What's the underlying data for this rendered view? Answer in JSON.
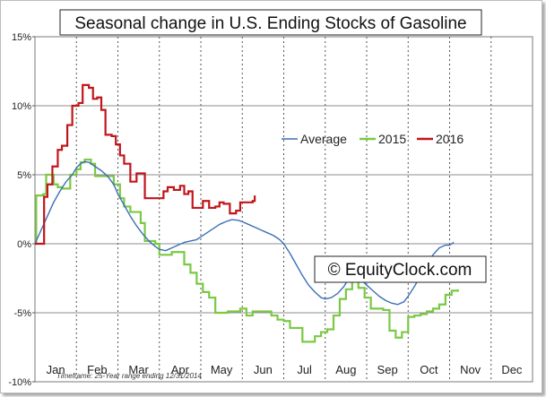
{
  "chart_data": {
    "type": "line",
    "title": "Seasonal change in U.S. Ending Stocks of Gasoline",
    "watermark": "© EquityClock.com",
    "footnote": "Timeframe: 25-Year range ending 12/31/2014",
    "x_categories": [
      "Jan",
      "Feb",
      "Mar",
      "Apr",
      "May",
      "Jun",
      "Jul",
      "Aug",
      "Sep",
      "Oct",
      "Nov",
      "Dec"
    ],
    "x_range": [
      0,
      12
    ],
    "y_ticks": [
      "15%",
      "10%",
      "5%",
      "0%",
      "-5%",
      "-10%"
    ],
    "y_tick_values": [
      15,
      10,
      5,
      0,
      -5,
      -10
    ],
    "ylim": [
      -10,
      15
    ],
    "grid": "dashed vertical lines between months, solid horizontal lines at 5% steps",
    "legend_position": "center-right",
    "series": [
      {
        "name": "Average",
        "color": "#3d6fb6",
        "style": "smooth",
        "points": [
          [
            0.0,
            0.0
          ],
          [
            0.15,
            1.0
          ],
          [
            0.3,
            2.0
          ],
          [
            0.45,
            3.0
          ],
          [
            0.6,
            3.8
          ],
          [
            0.75,
            4.5
          ],
          [
            0.9,
            5.0
          ],
          [
            1.0,
            5.5
          ],
          [
            1.1,
            5.8
          ],
          [
            1.2,
            5.95
          ],
          [
            1.3,
            5.9
          ],
          [
            1.45,
            5.6
          ],
          [
            1.6,
            5.3
          ],
          [
            1.75,
            4.9
          ],
          [
            1.9,
            4.3
          ],
          [
            2.0,
            3.6
          ],
          [
            2.15,
            2.8
          ],
          [
            2.3,
            2.0
          ],
          [
            2.45,
            1.3
          ],
          [
            2.6,
            0.7
          ],
          [
            2.75,
            0.2
          ],
          [
            2.9,
            -0.2
          ],
          [
            3.0,
            -0.4
          ],
          [
            3.15,
            -0.5
          ],
          [
            3.3,
            -0.3
          ],
          [
            3.45,
            -0.1
          ],
          [
            3.6,
            0.1
          ],
          [
            3.75,
            0.2
          ],
          [
            3.9,
            0.3
          ],
          [
            4.0,
            0.5
          ],
          [
            4.15,
            0.8
          ],
          [
            4.3,
            1.1
          ],
          [
            4.45,
            1.4
          ],
          [
            4.6,
            1.6
          ],
          [
            4.75,
            1.75
          ],
          [
            4.9,
            1.7
          ],
          [
            5.0,
            1.6
          ],
          [
            5.15,
            1.4
          ],
          [
            5.3,
            1.2
          ],
          [
            5.45,
            1.0
          ],
          [
            5.6,
            0.8
          ],
          [
            5.75,
            0.6
          ],
          [
            5.9,
            0.3
          ],
          [
            6.0,
            0.0
          ],
          [
            6.15,
            -0.7
          ],
          [
            6.3,
            -1.5
          ],
          [
            6.45,
            -2.3
          ],
          [
            6.6,
            -3.0
          ],
          [
            6.75,
            -3.5
          ],
          [
            6.9,
            -3.9
          ],
          [
            7.0,
            -4.0
          ],
          [
            7.15,
            -3.9
          ],
          [
            7.3,
            -3.6
          ],
          [
            7.45,
            -3.1
          ],
          [
            7.55,
            -2.6
          ],
          [
            7.65,
            -2.3
          ],
          [
            7.75,
            -2.4
          ],
          [
            7.9,
            -2.7
          ],
          [
            8.0,
            -3.0
          ],
          [
            8.15,
            -3.4
          ],
          [
            8.3,
            -3.8
          ],
          [
            8.45,
            -4.1
          ],
          [
            8.6,
            -4.3
          ],
          [
            8.75,
            -4.4
          ],
          [
            8.9,
            -4.2
          ],
          [
            9.0,
            -3.8
          ],
          [
            9.15,
            -3.1
          ],
          [
            9.3,
            -2.3
          ],
          [
            9.45,
            -1.5
          ],
          [
            9.6,
            -0.8
          ],
          [
            9.75,
            -0.3
          ],
          [
            9.9,
            -0.1
          ],
          [
            10.0,
            -0.1
          ],
          [
            10.1,
            0.1
          ]
        ]
      },
      {
        "name": "2015",
        "color": "#7ac943",
        "style": "step",
        "points": [
          [
            0.0,
            0.0
          ],
          [
            0.03,
            3.5
          ],
          [
            0.2,
            3.6
          ],
          [
            0.27,
            5.0
          ],
          [
            0.35,
            5.0
          ],
          [
            0.45,
            4.3
          ],
          [
            0.55,
            4.1
          ],
          [
            0.65,
            4.0
          ],
          [
            0.75,
            4.0
          ],
          [
            0.85,
            5.0
          ],
          [
            1.0,
            5.4
          ],
          [
            1.1,
            5.9
          ],
          [
            1.2,
            6.1
          ],
          [
            1.35,
            5.8
          ],
          [
            1.45,
            4.9
          ],
          [
            1.6,
            4.9
          ],
          [
            1.75,
            4.9
          ],
          [
            1.9,
            4.3
          ],
          [
            2.05,
            3.3
          ],
          [
            2.15,
            2.7
          ],
          [
            2.3,
            2.3
          ],
          [
            2.45,
            2.3
          ],
          [
            2.55,
            1.5
          ],
          [
            2.65,
            0.2
          ],
          [
            2.8,
            0.2
          ],
          [
            2.9,
            0.0
          ],
          [
            3.0,
            -0.8
          ],
          [
            3.15,
            -0.8
          ],
          [
            3.3,
            -0.6
          ],
          [
            3.45,
            -0.6
          ],
          [
            3.6,
            -1.5
          ],
          [
            3.75,
            -2.1
          ],
          [
            3.9,
            -2.9
          ],
          [
            4.05,
            -3.5
          ],
          [
            4.2,
            -3.9
          ],
          [
            4.35,
            -5.0
          ],
          [
            4.5,
            -5.0
          ],
          [
            4.65,
            -4.9
          ],
          [
            4.8,
            -4.9
          ],
          [
            4.95,
            -4.7
          ],
          [
            5.1,
            -5.2
          ],
          [
            5.25,
            -4.9
          ],
          [
            5.4,
            -4.9
          ],
          [
            5.55,
            -4.9
          ],
          [
            5.7,
            -5.2
          ],
          [
            5.85,
            -5.5
          ],
          [
            6.0,
            -5.6
          ],
          [
            6.15,
            -6.1
          ],
          [
            6.3,
            -6.1
          ],
          [
            6.45,
            -7.1
          ],
          [
            6.6,
            -7.1
          ],
          [
            6.75,
            -6.7
          ],
          [
            6.9,
            -6.4
          ],
          [
            7.05,
            -6.2
          ],
          [
            7.2,
            -5.2
          ],
          [
            7.35,
            -4.0
          ],
          [
            7.5,
            -3.3
          ],
          [
            7.65,
            -2.6
          ],
          [
            7.8,
            -3.2
          ],
          [
            7.95,
            -3.9
          ],
          [
            8.1,
            -4.7
          ],
          [
            8.25,
            -4.7
          ],
          [
            8.4,
            -4.8
          ],
          [
            8.55,
            -6.3
          ],
          [
            8.7,
            -6.8
          ],
          [
            8.85,
            -6.4
          ],
          [
            9.0,
            -5.3
          ],
          [
            9.15,
            -5.2
          ],
          [
            9.3,
            -5.1
          ],
          [
            9.45,
            -4.9
          ],
          [
            9.6,
            -4.7
          ],
          [
            9.75,
            -4.4
          ],
          [
            9.9,
            -3.7
          ],
          [
            10.05,
            -3.4
          ],
          [
            10.2,
            -3.3
          ]
        ]
      },
      {
        "name": "2016",
        "color": "#c0161b",
        "style": "step",
        "points": [
          [
            0.0,
            0.0
          ],
          [
            0.15,
            0.0
          ],
          [
            0.22,
            3.4
          ],
          [
            0.3,
            4.3
          ],
          [
            0.42,
            5.6
          ],
          [
            0.55,
            6.8
          ],
          [
            0.65,
            7.1
          ],
          [
            0.78,
            8.6
          ],
          [
            0.9,
            10.0
          ],
          [
            1.05,
            10.2
          ],
          [
            1.15,
            11.5
          ],
          [
            1.3,
            11.3
          ],
          [
            1.4,
            10.5
          ],
          [
            1.5,
            10.6
          ],
          [
            1.6,
            9.7
          ],
          [
            1.7,
            7.9
          ],
          [
            1.85,
            7.8
          ],
          [
            1.95,
            7.2
          ],
          [
            2.05,
            6.4
          ],
          [
            2.15,
            5.8
          ],
          [
            2.3,
            4.5
          ],
          [
            2.45,
            5.1
          ],
          [
            2.55,
            5.1
          ],
          [
            2.65,
            3.3
          ],
          [
            2.8,
            3.3
          ],
          [
            3.0,
            3.3
          ],
          [
            3.1,
            3.8
          ],
          [
            3.2,
            4.1
          ],
          [
            3.35,
            3.9
          ],
          [
            3.5,
            4.2
          ],
          [
            3.6,
            3.6
          ],
          [
            3.7,
            3.8
          ],
          [
            3.8,
            2.6
          ],
          [
            4.0,
            2.6
          ],
          [
            4.05,
            3.1
          ],
          [
            4.2,
            2.6
          ],
          [
            4.35,
            2.7
          ],
          [
            4.45,
            3.0
          ],
          [
            4.55,
            2.9
          ],
          [
            4.7,
            2.2
          ],
          [
            4.85,
            2.4
          ],
          [
            4.95,
            3.0
          ],
          [
            5.1,
            3.0
          ],
          [
            5.25,
            3.1
          ],
          [
            5.3,
            3.5
          ]
        ]
      }
    ]
  }
}
